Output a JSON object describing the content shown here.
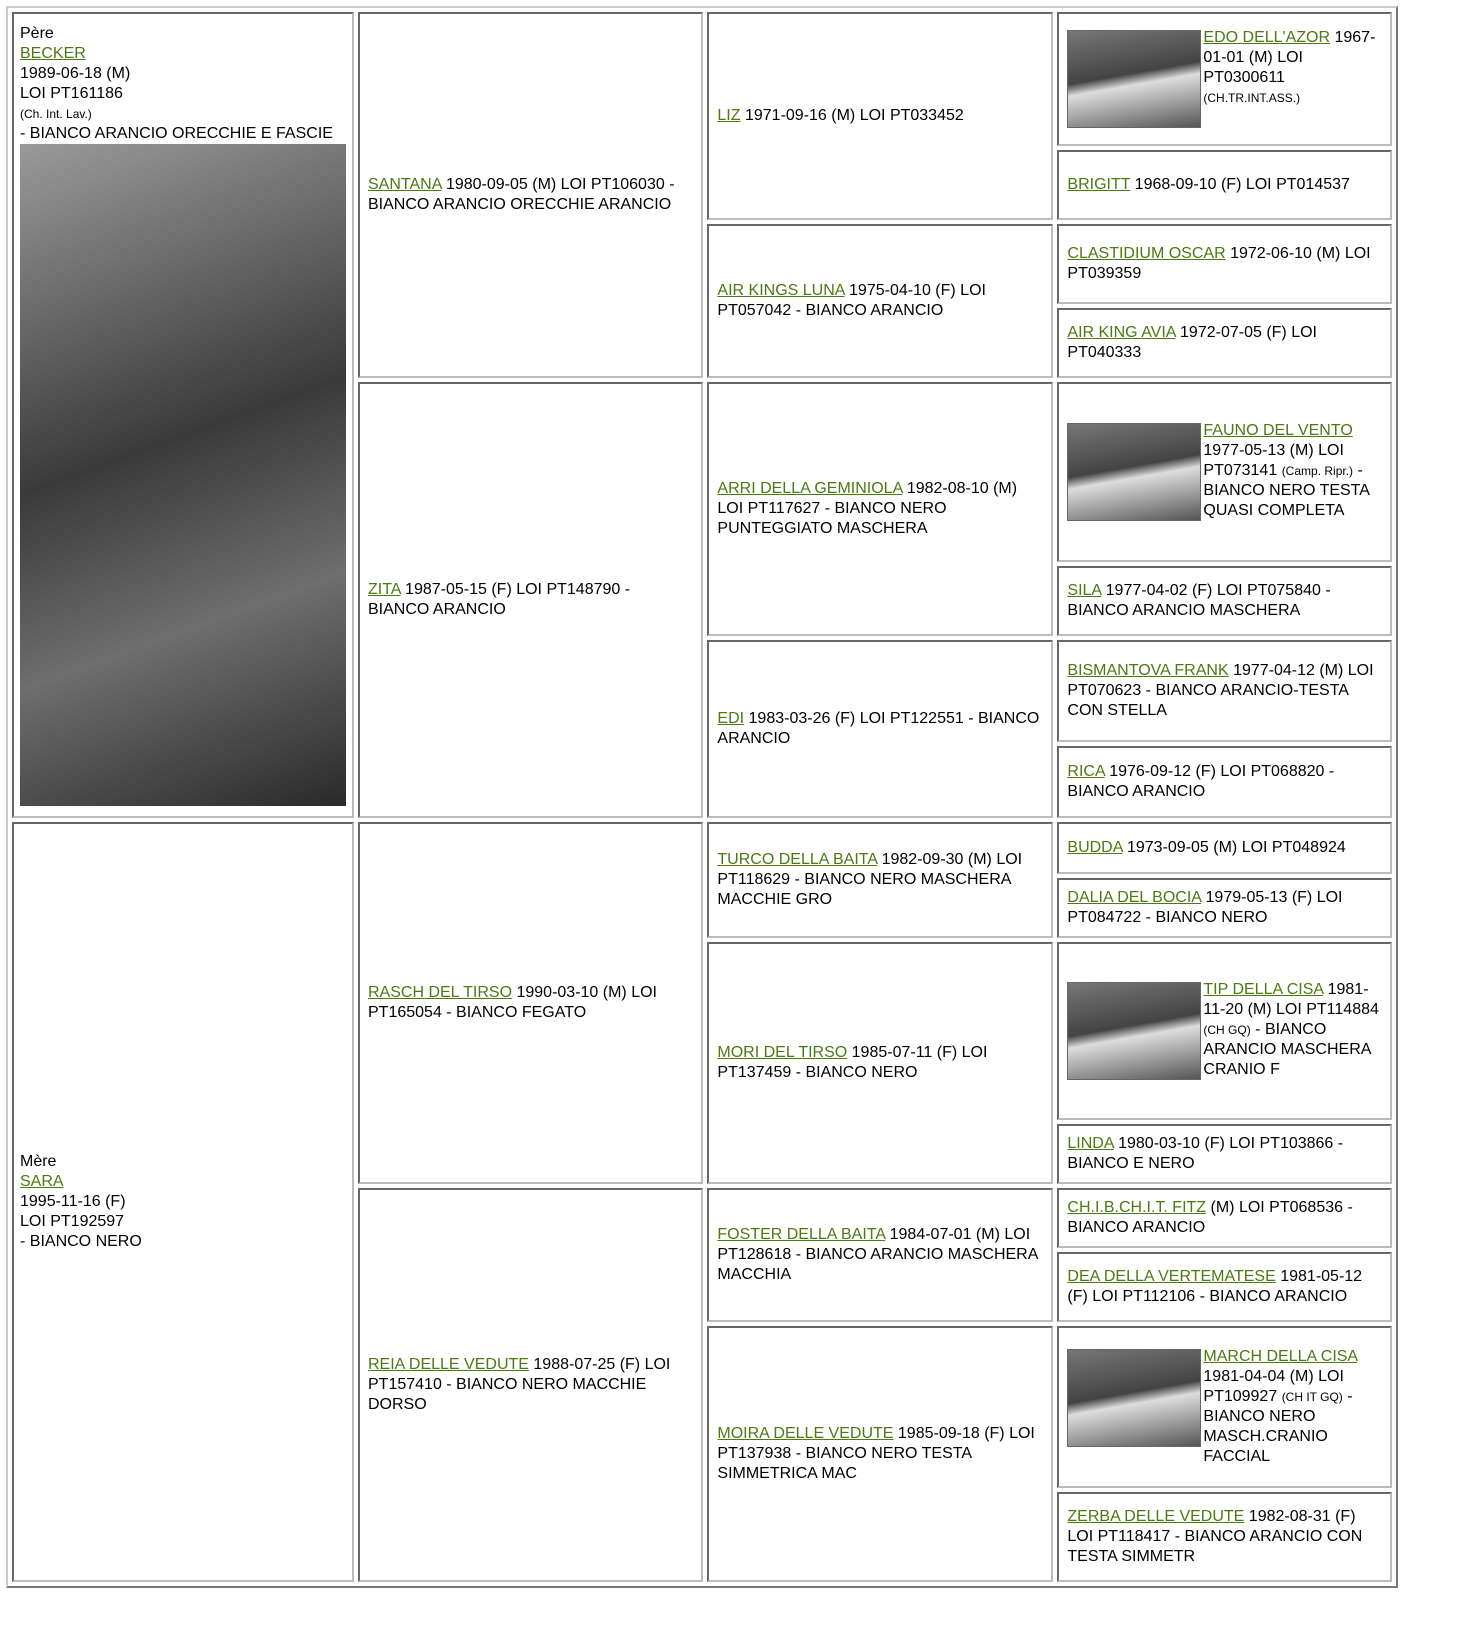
{
  "cells": [
    {
      "label": "Père",
      "name": "BECKER",
      "info": [
        "1989-06-18 (M)",
        "LOI PT161186"
      ],
      "note": "(Ch. Int. Lav.)",
      "info2": "- BIANCO ARANCIO ORECCHIE E FASCIE",
      "photo": true
    },
    {
      "label": "Mère",
      "name": "SARA",
      "info": [
        "1995-11-16 (F)",
        "LOI PT192597",
        "- BIANCO NERO"
      ]
    },
    {
      "name": "SANTANA",
      "info": "1980-09-05 (M) LOI PT106030 - BIANCO ARANCIO ORECCHIE ARANCIO"
    },
    {
      "name": "ZITA",
      "info": "1987-05-15 (F) LOI PT148790 - BIANCO ARANCIO"
    },
    {
      "name": "RASCH DEL TIRSO",
      "info": "1990-03-10 (M) LOI PT165054 - BIANCO FEGATO"
    },
    {
      "name": "REIA DELLE VEDUTE",
      "info": "1988-07-25 (F) LOI PT157410 - BIANCO NERO MACCHIE DORSO"
    },
    {
      "name": "LIZ",
      "info": "1971-09-16 (M) LOI PT033452"
    },
    {
      "name": "AIR KINGS LUNA",
      "info": "1975-04-10 (F) LOI PT057042 - BIANCO ARANCIO"
    },
    {
      "name": "ARRI DELLA GEMINIOLA",
      "info": "1982-08-10 (M) LOI PT117627 - BIANCO NERO PUNTEGGIATO MASCHERA"
    },
    {
      "name": "EDI",
      "info": "1983-03-26 (F) LOI PT122551 - BIANCO ARANCIO"
    },
    {
      "name": "TURCO DELLA BAITA",
      "info": "1982-09-30 (M) LOI PT118629 - BIANCO NERO MASCHERA MACCHIE GRO"
    },
    {
      "name": "MORI DEL TIRSO",
      "info": "1985-07-11 (F) LOI PT137459 - BIANCO NERO"
    },
    {
      "name": "FOSTER DELLA BAITA",
      "info": "1984-07-01 (M) LOI PT128618 - BIANCO ARANCIO MASCHERA MACCHIA"
    },
    {
      "name": "MOIRA DELLE VEDUTE",
      "info": "1985-09-18 (F) LOI PT137938 - BIANCO NERO TESTA SIMMETRICA MAC"
    },
    {
      "name": "EDO DELL'AZOR",
      "info": "1967-01-01 (M) LOI PT0300611",
      "note": "(CH.TR.INT.ASS.)",
      "photo": true
    },
    {
      "name": "BRIGITT",
      "info": "1968-09-10 (F) LOI PT014537"
    },
    {
      "name": "CLASTIDIUM OSCAR",
      "info": "1972-06-10 (M) LOI PT039359"
    },
    {
      "name": "AIR KING AVIA",
      "info": "1972-07-05 (F) LOI PT040333"
    },
    {
      "name": "FAUNO DEL VENTO",
      "info": "1977-05-13 (M) LOI PT073141",
      "note": "(Camp. Ripr.)",
      "info2": "- BIANCO NERO TESTA QUASI COMPLETA",
      "photo": true
    },
    {
      "name": "SILA",
      "info": "1977-04-02 (F) LOI PT075840 - BIANCO ARANCIO MASCHERA"
    },
    {
      "name": "BISMANTOVA FRANK",
      "info": "1977-04-12 (M) LOI PT070623 - BIANCO ARANCIO-TESTA CON STELLA"
    },
    {
      "name": "RICA",
      "info": "1976-09-12 (F) LOI PT068820 - BIANCO ARANCIO"
    },
    {
      "name": "BUDDA",
      "info": "1973-09-05 (M) LOI PT048924"
    },
    {
      "name": "DALIA DEL BOCIA",
      "info": "1979-05-13 (F) LOI PT084722 - BIANCO NERO"
    },
    {
      "name": "TIP DELLA CISA",
      "info": "1981-11-20 (M) LOI PT114884",
      "note": "(CH GQ)",
      "info2": "- BIANCO ARANCIO MASCHERA CRANIO F",
      "photo": true
    },
    {
      "name": "LINDA",
      "info": "1980-03-10 (F) LOI PT103866 - BIANCO E NERO"
    },
    {
      "name": "CH.I.B.CH.I.T. FITZ",
      "info": "(M) LOI PT068536 - BIANCO ARANCIO"
    },
    {
      "name": "DEA DELLA VERTEMATESE",
      "info": "1981-05-12 (F) LOI PT112106 - BIANCO ARANCIO"
    },
    {
      "name": "MARCH DELLA CISA",
      "info": "1981-04-04 (M) LOI PT109927",
      "note": "(CH IT GQ)",
      "info2": "- BIANCO NERO MASCH.CRANIO FACCIAL",
      "photo": true
    },
    {
      "name": "ZERBA DELLE VEDUTE",
      "info": "1982-08-31 (F) LOI PT118417 - BIANCO ARANCIO CON TESTA SIMMETR"
    }
  ]
}
